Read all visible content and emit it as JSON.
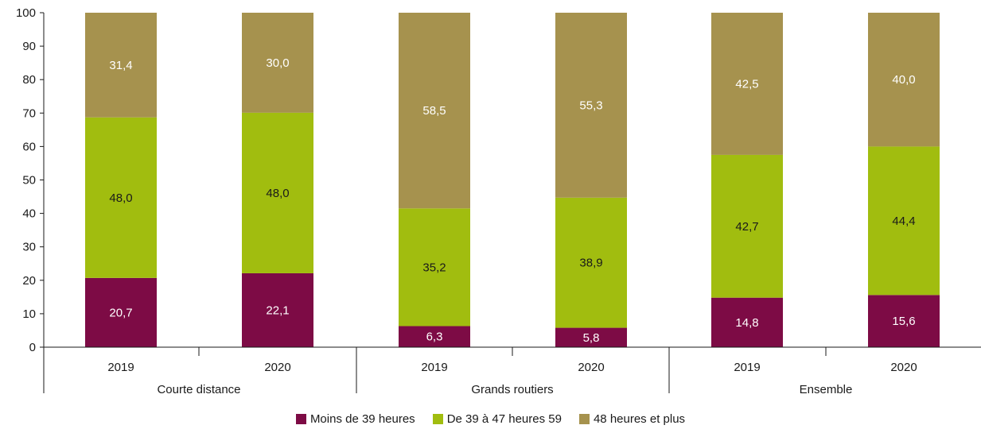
{
  "chart_data": {
    "type": "bar",
    "stacked": true,
    "groups": [
      {
        "label": "Courte distance",
        "categories": [
          "2019",
          "2020"
        ]
      },
      {
        "label": "Grands routiers",
        "categories": [
          "2019",
          "2020"
        ]
      },
      {
        "label": "Ensemble",
        "categories": [
          "2019",
          "2020"
        ]
      }
    ],
    "series": [
      {
        "name": "Moins de 39 heures",
        "color": "#7d0b45",
        "label_color": "#ffffff",
        "values": [
          20.7,
          22.1,
          6.3,
          5.8,
          14.8,
          15.6
        ],
        "labels": [
          "20,7",
          "22,1",
          "6,3",
          "5,8",
          "14,8",
          "15,6"
        ]
      },
      {
        "name": "De 39 à 47 heures 59",
        "color": "#a1bd0f",
        "label_color": "#1a1a1a",
        "values": [
          48.0,
          48.0,
          35.2,
          38.9,
          42.7,
          44.4
        ],
        "labels": [
          "48,0",
          "48,0",
          "35,2",
          "38,9",
          "42,7",
          "44,4"
        ]
      },
      {
        "name": "48 heures et plus",
        "color": "#a6924e",
        "label_color": "#ffffff",
        "values": [
          31.4,
          30.0,
          58.5,
          55.3,
          42.5,
          40.0
        ],
        "labels": [
          "31,4",
          "30,0",
          "58,5",
          "55,3",
          "42,5",
          "40,0"
        ]
      }
    ],
    "ylim": [
      0,
      100
    ],
    "yticks": [
      "0",
      "10",
      "20",
      "30",
      "40",
      "50",
      "60",
      "70",
      "80",
      "90",
      "100"
    ],
    "grid": false,
    "legend_position": "bottom"
  }
}
